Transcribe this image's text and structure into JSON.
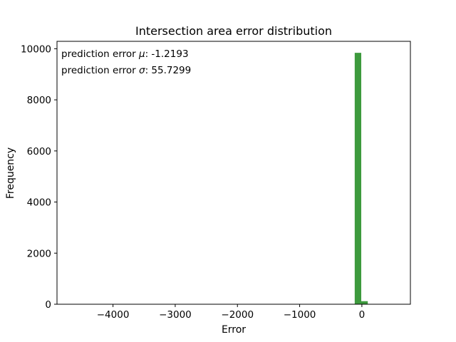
{
  "chart_data": {
    "type": "bar",
    "title": "Intersection area error distribution",
    "xlabel": "Error",
    "ylabel": "Frequency",
    "xlim": [
      -4900,
      780
    ],
    "ylim": [
      0,
      10290
    ],
    "x_ticks": [
      -4000,
      -3000,
      -2000,
      -1000,
      0
    ],
    "x_tick_labels": [
      "−4000",
      "−3000",
      "−2000",
      "−1000",
      "0"
    ],
    "y_ticks": [
      0,
      2000,
      4000,
      6000,
      8000,
      10000
    ],
    "y_tick_labels": [
      "0",
      "2000",
      "4000",
      "6000",
      "8000",
      "10000"
    ],
    "bin_width": 105,
    "bars": [
      {
        "x0": -115,
        "x1": -10,
        "value": 9840
      },
      {
        "x0": -10,
        "x1": 95,
        "value": 120
      }
    ],
    "bar_color": "#3d9a3d",
    "annotations": [
      {
        "prefix": "prediction error ",
        "symbol": "μ",
        "suffix": ": -1.2193"
      },
      {
        "prefix": "prediction error ",
        "symbol": "σ",
        "suffix": ": 55.7299"
      }
    ],
    "grid": false,
    "legend": "none"
  }
}
